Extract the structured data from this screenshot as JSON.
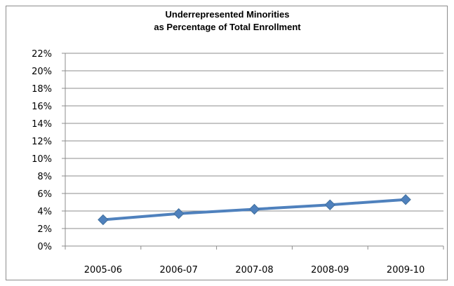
{
  "chart_data": {
    "type": "line",
    "title_lines": [
      "Underrepresented Minorities",
      "as Percentage of Total Enrollment"
    ],
    "categories": [
      "2005-06",
      "2006-07",
      "2007-08",
      "2008-09",
      "2009-10"
    ],
    "series": [
      {
        "values": [
          3.0,
          3.7,
          4.2,
          4.7,
          5.3
        ]
      }
    ],
    "y_ticks": [
      "0%",
      "2%",
      "4%",
      "6%",
      "8%",
      "10%",
      "12%",
      "14%",
      "16%",
      "18%",
      "20%",
      "22%"
    ],
    "ylim": [
      0,
      22
    ],
    "grid": true,
    "legend": "none",
    "colors": {
      "line": "#4f81bd",
      "marker": "#4f81bd",
      "grid": "#8c8c8c",
      "axis": "#8c8c8c"
    }
  }
}
